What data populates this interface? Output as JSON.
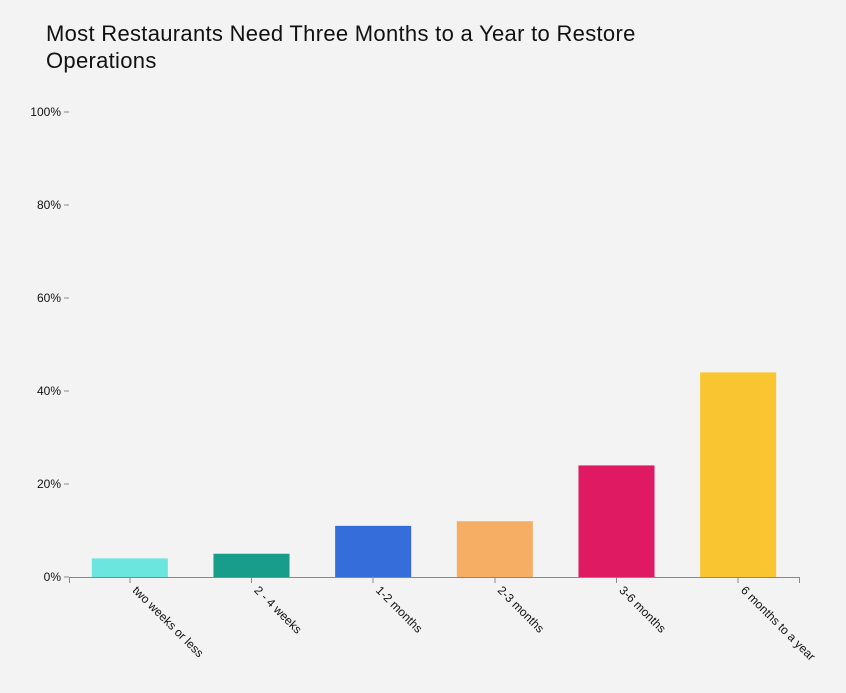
{
  "chart_data": {
    "type": "bar",
    "title": "Most Restaurants Need Three Months to a Year to Restore Operations",
    "xlabel": "",
    "ylabel": "",
    "categories": [
      "two weeks or less",
      "2 - 4 weeks",
      "1-2 months",
      "2-3 months",
      "3-6 months",
      "6 months to a year"
    ],
    "values": [
      4,
      5,
      11,
      12,
      24,
      44
    ],
    "colors": [
      "#6be6de",
      "#189d8a",
      "#356ddb",
      "#f5ae63",
      "#df1a62",
      "#f9c631"
    ],
    "ylim": [
      0,
      100
    ],
    "yticks": [
      0,
      20,
      40,
      60,
      80,
      100
    ],
    "ytick_labels": [
      "0%",
      "20%",
      "40%",
      "60%",
      "80%",
      "100%"
    ],
    "grid": false,
    "legend": "none"
  }
}
